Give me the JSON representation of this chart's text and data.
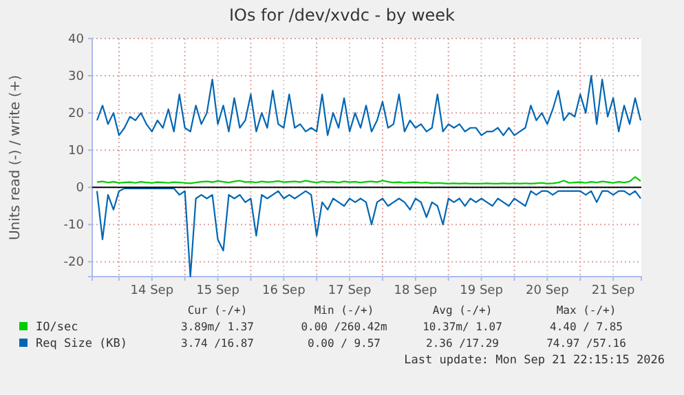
{
  "chart_data": {
    "type": "line",
    "title": "IOs for /dev/xvdc - by week",
    "ylabel": "Units read (-) / write (+)",
    "x": [
      "2026-09-13T16:00",
      "2026-09-13T18:00",
      "2026-09-13T20:00",
      "2026-09-13T22:00",
      "2026-09-14T00:00",
      "2026-09-14T02:00",
      "2026-09-14T04:00",
      "2026-09-14T06:00",
      "2026-09-14T08:00",
      "2026-09-14T10:00",
      "2026-09-14T12:00",
      "2026-09-14T14:00",
      "2026-09-14T16:00",
      "2026-09-14T18:00",
      "2026-09-14T20:00",
      "2026-09-14T22:00",
      "2026-09-15T00:00",
      "2026-09-15T02:00",
      "2026-09-15T04:00",
      "2026-09-15T06:00",
      "2026-09-15T08:00",
      "2026-09-15T10:00",
      "2026-09-15T12:00",
      "2026-09-15T14:00",
      "2026-09-15T16:00",
      "2026-09-15T18:00",
      "2026-09-15T20:00",
      "2026-09-15T22:00",
      "2026-09-16T00:00",
      "2026-09-16T02:00",
      "2026-09-16T04:00",
      "2026-09-16T06:00",
      "2026-09-16T08:00",
      "2026-09-16T10:00",
      "2026-09-16T12:00",
      "2026-09-16T14:00",
      "2026-09-16T16:00",
      "2026-09-16T18:00",
      "2026-09-16T20:00",
      "2026-09-16T22:00",
      "2026-09-17T00:00",
      "2026-09-17T02:00",
      "2026-09-17T04:00",
      "2026-09-17T06:00",
      "2026-09-17T08:00",
      "2026-09-17T10:00",
      "2026-09-17T12:00",
      "2026-09-17T14:00",
      "2026-09-17T16:00",
      "2026-09-17T18:00",
      "2026-09-17T20:00",
      "2026-09-17T22:00",
      "2026-09-18T00:00",
      "2026-09-18T02:00",
      "2026-09-18T04:00",
      "2026-09-18T06:00",
      "2026-09-18T08:00",
      "2026-09-18T10:00",
      "2026-09-18T12:00",
      "2026-09-18T14:00",
      "2026-09-18T16:00",
      "2026-09-18T18:00",
      "2026-09-18T20:00",
      "2026-09-18T22:00",
      "2026-09-19T00:00",
      "2026-09-19T02:00",
      "2026-09-19T04:00",
      "2026-09-19T06:00",
      "2026-09-19T08:00",
      "2026-09-19T10:00",
      "2026-09-19T12:00",
      "2026-09-19T14:00",
      "2026-09-19T16:00",
      "2026-09-19T18:00",
      "2026-09-19T20:00",
      "2026-09-19T22:00",
      "2026-09-20T00:00",
      "2026-09-20T02:00",
      "2026-09-20T04:00",
      "2026-09-20T06:00",
      "2026-09-20T08:00",
      "2026-09-20T10:00",
      "2026-09-20T12:00",
      "2026-09-20T14:00",
      "2026-09-20T16:00",
      "2026-09-20T18:00",
      "2026-09-20T20:00",
      "2026-09-20T22:00",
      "2026-09-21T00:00",
      "2026-09-21T02:00",
      "2026-09-21T04:00",
      "2026-09-21T06:00",
      "2026-09-21T08:00",
      "2026-09-21T10:00",
      "2026-09-21T12:00",
      "2026-09-21T14:00",
      "2026-09-21T16:00",
      "2026-09-21T18:00",
      "2026-09-21T20:00",
      "2026-09-21T22:00"
    ],
    "series": [
      {
        "name": "IO/sec",
        "color": "#00cc00",
        "values": [
          1.4,
          1.6,
          1.3,
          1.5,
          1.2,
          1.3,
          1.4,
          1.2,
          1.5,
          1.3,
          1.2,
          1.4,
          1.3,
          1.2,
          1.4,
          1.3,
          1.2,
          1.1,
          1.3,
          1.5,
          1.6,
          1.4,
          1.7,
          1.5,
          1.3,
          1.6,
          1.8,
          1.4,
          1.5,
          1.3,
          1.6,
          1.4,
          1.5,
          1.7,
          1.4,
          1.5,
          1.6,
          1.4,
          1.8,
          1.5,
          1.3,
          1.6,
          1.4,
          1.5,
          1.3,
          1.6,
          1.4,
          1.5,
          1.3,
          1.5,
          1.6,
          1.4,
          1.8,
          1.5,
          1.3,
          1.4,
          1.2,
          1.3,
          1.4,
          1.2,
          1.3,
          1.1,
          1.2,
          1.1,
          1.0,
          1.1,
          1.0,
          1.1,
          1.0,
          1.0,
          1.0,
          1.1,
          1.0,
          1.0,
          1.1,
          1.0,
          1.1,
          1.0,
          1.1,
          1.0,
          1.1,
          1.2,
          1.0,
          1.1,
          1.3,
          1.8,
          1.2,
          1.3,
          1.4,
          1.2,
          1.5,
          1.3,
          1.6,
          1.4,
          1.2,
          1.5,
          1.3,
          1.6,
          2.8,
          1.7
        ]
      },
      {
        "name": "Req Size (KB)",
        "color": "#0066b3",
        "values": [
          18,
          22,
          17,
          20,
          14,
          16,
          19,
          18,
          20,
          17,
          15,
          18,
          16,
          21,
          15,
          25,
          16,
          15,
          22,
          17,
          20,
          29,
          17,
          22,
          15,
          24,
          16,
          18,
          25,
          15,
          20,
          16,
          26,
          17,
          16,
          25,
          16,
          17,
          15,
          16,
          15,
          25,
          14,
          20,
          16,
          24,
          15,
          20,
          16,
          22,
          15,
          18,
          23,
          16,
          17,
          25,
          15,
          18,
          16,
          17,
          15,
          16,
          25,
          15,
          17,
          16,
          17,
          15,
          16,
          16,
          14,
          15,
          15,
          16,
          14,
          16,
          14,
          15,
          16,
          22,
          18,
          20,
          17,
          21,
          26,
          18,
          20,
          19,
          25,
          20,
          30,
          17,
          29,
          19,
          24,
          15,
          22,
          17,
          24,
          18
        ]
      },
      {
        "color": "#0066b3",
        "values": [
          -1,
          -14,
          -2,
          -6,
          -1,
          -0.3,
          -0.3,
          -0.3,
          -0.3,
          -0.3,
          -0.3,
          -0.3,
          -0.3,
          -0.3,
          -0.3,
          -2,
          -1,
          -24,
          -3,
          -2,
          -3,
          -2,
          -14,
          -17,
          -2,
          -3,
          -2,
          -4,
          -3,
          -13,
          -2,
          -3,
          -2,
          -1,
          -3,
          -2,
          -3,
          -2,
          -1,
          -2,
          -13,
          -4,
          -6,
          -3,
          -4,
          -5,
          -3,
          -4,
          -3,
          -4,
          -10,
          -4,
          -3,
          -5,
          -4,
          -3,
          -4,
          -6,
          -3,
          -4,
          -8,
          -4,
          -5,
          -10,
          -3,
          -4,
          -3,
          -5,
          -3,
          -4,
          -3,
          -4,
          -5,
          -3,
          -4,
          -5,
          -3,
          -4,
          -5,
          -1,
          -2,
          -1,
          -1,
          -2,
          -1,
          -1,
          -1,
          -1,
          -1,
          -2,
          -1,
          -4,
          -1,
          -1,
          -2,
          -1,
          -1,
          -2,
          -1,
          -3
        ]
      }
    ],
    "xlim": [
      "2026-09-13T14:15",
      "2026-09-21T22:15"
    ],
    "xticks": [
      {
        "value": "2026-09-14T00:00",
        "label": null
      },
      {
        "value": "2026-09-14T12:00",
        "label": "14 Sep"
      },
      {
        "value": "2026-09-15T00:00",
        "label": null
      },
      {
        "value": "2026-09-15T12:00",
        "label": "15 Sep"
      },
      {
        "value": "2026-09-16T00:00",
        "label": null
      },
      {
        "value": "2026-09-16T12:00",
        "label": "16 Sep"
      },
      {
        "value": "2026-09-17T00:00",
        "label": null
      },
      {
        "value": "2026-09-17T12:00",
        "label": "17 Sep"
      },
      {
        "value": "2026-09-18T00:00",
        "label": null
      },
      {
        "value": "2026-09-18T12:00",
        "label": "18 Sep"
      },
      {
        "value": "2026-09-19T00:00",
        "label": null
      },
      {
        "value": "2026-09-19T12:00",
        "label": "19 Sep"
      },
      {
        "value": "2026-09-20T00:00",
        "label": null
      },
      {
        "value": "2026-09-20T12:00",
        "label": "20 Sep"
      },
      {
        "value": "2026-09-21T00:00",
        "label": null
      },
      {
        "value": "2026-09-21T12:00",
        "label": "21 Sep"
      }
    ],
    "ylim": [
      -24,
      40
    ],
    "yticks": [
      -20,
      -10,
      0,
      10,
      20,
      30,
      40
    ],
    "grid": true,
    "legend": "bottom left",
    "ref_lines": [
      {
        "axis": "y",
        "value": 0,
        "color": "#000000"
      }
    ],
    "annotations": [
      "Cur (-/+)",
      "Min (-/+)",
      "Avg (-/+)",
      "Max (-/+)",
      "3.89m/ 1.37",
      "0.00 /260.42m",
      "10.37m/ 1.07",
      "4.40 / 7.85",
      "3.74 /16.87",
      "0.00 / 9.57",
      "2.36 /17.29",
      "74.97 /57.16",
      "Last update: Mon Sep 21 22:15:15 2026"
    ]
  }
}
